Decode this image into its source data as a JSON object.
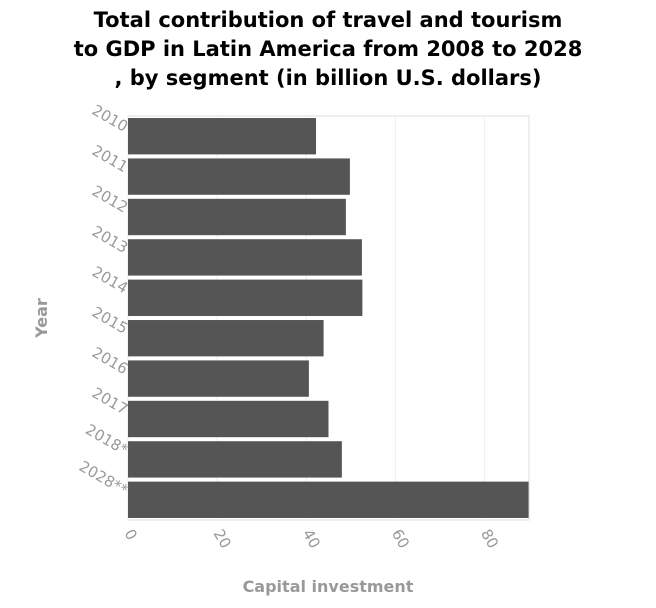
{
  "chart_data": {
    "type": "bar",
    "orientation": "horizontal",
    "title_lines": [
      "Total contribution of travel and tourism",
      "to GDP in Latin America from 2008 to 2028",
      ", by segment (in billion U.S. dollars)"
    ],
    "xlabel": "Capital investment",
    "ylabel": "Year",
    "categories": [
      "2010",
      "2011",
      "2012",
      "2013",
      "2014",
      "2015",
      "2016",
      "2017",
      "2018*",
      "2028**"
    ],
    "values": [
      42.2,
      49.8,
      48.9,
      52.5,
      52.6,
      43.9,
      40.6,
      45.0,
      48.0,
      89.9
    ],
    "x_ticks": [
      0,
      20,
      40,
      60,
      80
    ],
    "xlim": [
      0,
      90
    ],
    "grid": "vertical",
    "bar_color": "#555555"
  }
}
